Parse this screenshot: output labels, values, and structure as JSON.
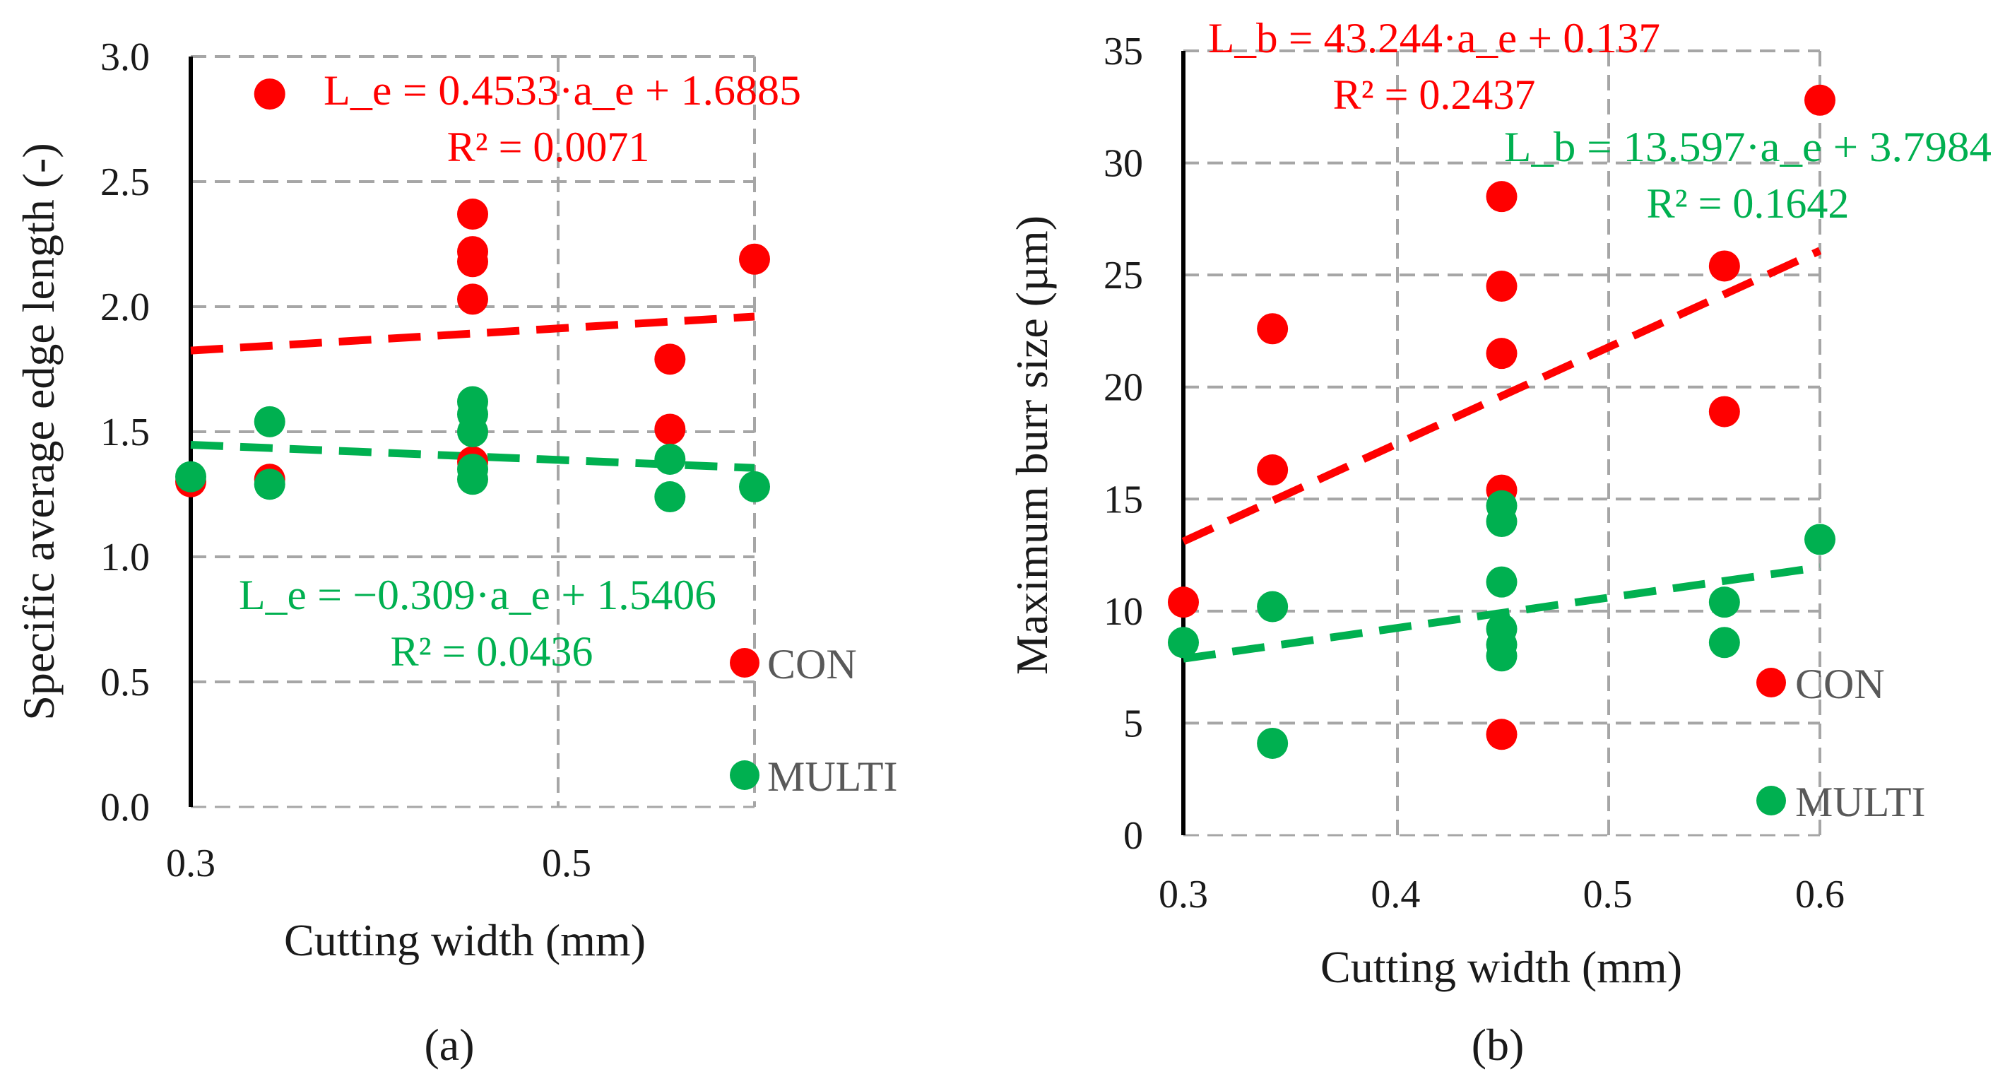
{
  "chart_data": [
    {
      "type": "scatter",
      "panel_label": "(a)",
      "xlabel": "Cutting width (mm)",
      "ylabel": "Specific average edge length (-)",
      "xlim": [
        0.3,
        0.6
      ],
      "ylim": [
        0.0,
        3.0
      ],
      "x_ticks": [
        "0.3",
        "0.5"
      ],
      "y_ticks": [
        "0.0",
        "0.5",
        "1.0",
        "1.5",
        "2.0",
        "2.5",
        "3.0"
      ],
      "grid": true,
      "legend": "bottom-right",
      "series": [
        {
          "name": "CON",
          "color": "#ff0000",
          "points": [
            {
              "x": 0.3,
              "y": 1.3
            },
            {
              "x": 0.342,
              "y": 2.85
            },
            {
              "x": 0.342,
              "y": 1.31
            },
            {
              "x": 0.45,
              "y": 2.37
            },
            {
              "x": 0.45,
              "y": 2.22
            },
            {
              "x": 0.45,
              "y": 2.18
            },
            {
              "x": 0.45,
              "y": 2.03
            },
            {
              "x": 0.45,
              "y": 1.38
            },
            {
              "x": 0.555,
              "y": 1.79
            },
            {
              "x": 0.555,
              "y": 1.51
            },
            {
              "x": 0.6,
              "y": 2.19
            }
          ],
          "trendline": {
            "label": "L_e = 0.4533·a_e + 1.6885",
            "r2": "R² = 0.0071",
            "slope": 0.4533,
            "intercept": 1.6885
          }
        },
        {
          "name": "MULTI",
          "color": "#00b050",
          "points": [
            {
              "x": 0.3,
              "y": 1.32
            },
            {
              "x": 0.342,
              "y": 1.54
            },
            {
              "x": 0.342,
              "y": 1.29
            },
            {
              "x": 0.45,
              "y": 1.62
            },
            {
              "x": 0.45,
              "y": 1.57
            },
            {
              "x": 0.45,
              "y": 1.5
            },
            {
              "x": 0.45,
              "y": 1.35
            },
            {
              "x": 0.45,
              "y": 1.31
            },
            {
              "x": 0.555,
              "y": 1.39
            },
            {
              "x": 0.555,
              "y": 1.24
            },
            {
              "x": 0.6,
              "y": 1.28
            }
          ],
          "trendline": {
            "label": "L_e = −0.309·a_e + 1.5406",
            "r2": "R² = 0.0436",
            "slope": -0.309,
            "intercept": 1.5406
          }
        }
      ]
    },
    {
      "type": "scatter",
      "panel_label": "(b)",
      "xlabel": "Cutting width (mm)",
      "ylabel": "Maximum burr size (µm)",
      "xlim": [
        0.3,
        0.6
      ],
      "ylim": [
        0,
        35
      ],
      "x_ticks": [
        "0.3",
        "0.4",
        "0.5",
        "0.6"
      ],
      "y_ticks": [
        "0",
        "5",
        "10",
        "15",
        "20",
        "25",
        "30",
        "35"
      ],
      "grid": true,
      "legend": "bottom-right",
      "series": [
        {
          "name": "CON",
          "color": "#ff0000",
          "points": [
            {
              "x": 0.3,
              "y": 10.4
            },
            {
              "x": 0.342,
              "y": 22.6
            },
            {
              "x": 0.342,
              "y": 16.3
            },
            {
              "x": 0.45,
              "y": 28.5
            },
            {
              "x": 0.45,
              "y": 24.5
            },
            {
              "x": 0.45,
              "y": 21.5
            },
            {
              "x": 0.45,
              "y": 15.4
            },
            {
              "x": 0.45,
              "y": 4.5
            },
            {
              "x": 0.555,
              "y": 25.4
            },
            {
              "x": 0.555,
              "y": 18.9
            },
            {
              "x": 0.6,
              "y": 32.8
            }
          ],
          "trendline": {
            "label": "L_b = 43.244·a_e + 0.137",
            "r2": "R² = 0.2437",
            "slope": 43.244,
            "intercept": 0.137
          }
        },
        {
          "name": "MULTI",
          "color": "#00b050",
          "points": [
            {
              "x": 0.3,
              "y": 8.6
            },
            {
              "x": 0.342,
              "y": 10.2
            },
            {
              "x": 0.342,
              "y": 4.1
            },
            {
              "x": 0.45,
              "y": 14.7
            },
            {
              "x": 0.45,
              "y": 14.0
            },
            {
              "x": 0.45,
              "y": 11.3
            },
            {
              "x": 0.45,
              "y": 9.2
            },
            {
              "x": 0.45,
              "y": 8.5
            },
            {
              "x": 0.45,
              "y": 8.0
            },
            {
              "x": 0.555,
              "y": 10.4
            },
            {
              "x": 0.555,
              "y": 8.6
            },
            {
              "x": 0.6,
              "y": 13.2
            }
          ],
          "trendline": {
            "label": "L_b = 13.597·a_e + 3.7984",
            "r2": "R² = 0.1642",
            "slope": 13.597,
            "intercept": 3.7984
          }
        }
      ]
    }
  ]
}
